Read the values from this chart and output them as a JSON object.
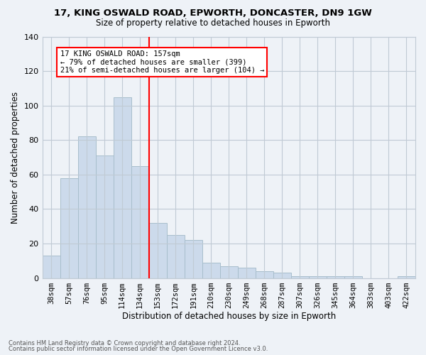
{
  "title1": "17, KING OSWALD ROAD, EPWORTH, DONCASTER, DN9 1GW",
  "title2": "Size of property relative to detached houses in Epworth",
  "xlabel": "Distribution of detached houses by size in Epworth",
  "ylabel": "Number of detached properties",
  "footnote1": "Contains HM Land Registry data © Crown copyright and database right 2024.",
  "footnote2": "Contains public sector information licensed under the Open Government Licence v3.0.",
  "categories": [
    "38sqm",
    "57sqm",
    "76sqm",
    "95sqm",
    "114sqm",
    "134sqm",
    "153sqm",
    "172sqm",
    "191sqm",
    "210sqm",
    "230sqm",
    "249sqm",
    "268sqm",
    "287sqm",
    "307sqm",
    "326sqm",
    "345sqm",
    "364sqm",
    "383sqm",
    "403sqm",
    "422sqm"
  ],
  "values": [
    13,
    58,
    82,
    71,
    105,
    65,
    32,
    25,
    22,
    9,
    7,
    6,
    4,
    3,
    1,
    1,
    1,
    1,
    0,
    0,
    1
  ],
  "bar_color": "#ccdaeb",
  "bar_edge_color": "#a8becc",
  "vline_color": "red",
  "vline_x_index": 6,
  "annotation_text": "17 KING OSWALD ROAD: 157sqm\n← 79% of detached houses are smaller (399)\n21% of semi-detached houses are larger (104) →",
  "annotation_box_color": "red",
  "annotation_fill": "white",
  "ylim": [
    0,
    140
  ],
  "yticks": [
    0,
    20,
    40,
    60,
    80,
    100,
    120,
    140
  ],
  "background_color": "#eef2f7",
  "plot_bg_color": "#eef2f7",
  "grid_color": "#c0cad4"
}
